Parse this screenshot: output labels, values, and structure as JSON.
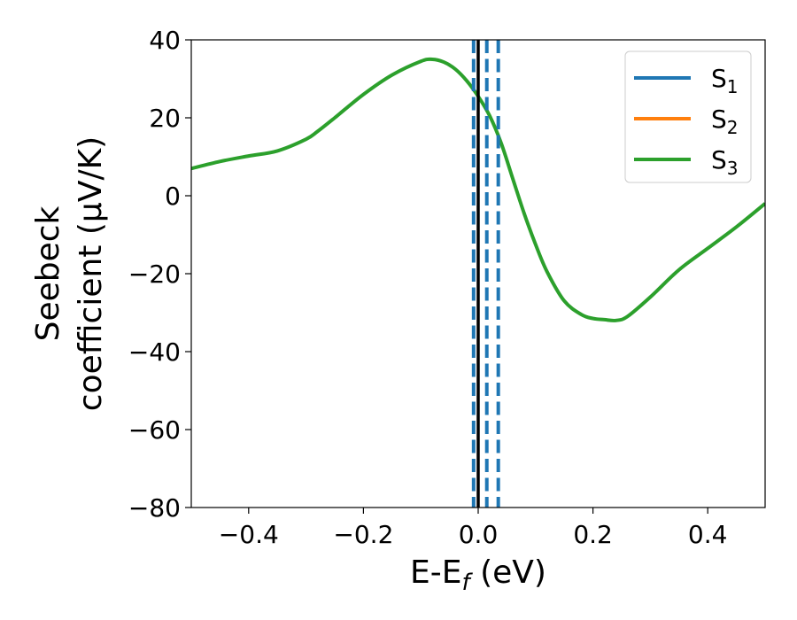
{
  "chart_data": {
    "type": "line",
    "xlabel_main": "E-E",
    "xlabel_sub": "f",
    "xlabel_unit": " (eV)",
    "ylabel_line1": "Seebeck",
    "ylabel_line2": "coefficient  (μV/K)",
    "xlim": [
      -0.5,
      0.5
    ],
    "ylim": [
      -80,
      40
    ],
    "x_ticks": [
      -0.4,
      -0.2,
      0.0,
      0.2,
      0.4
    ],
    "x_tick_labels": [
      "−0.4",
      "−0.2",
      "0.0",
      "0.2",
      "0.4"
    ],
    "y_ticks": [
      40,
      20,
      0,
      -20,
      -40,
      -60,
      -80
    ],
    "y_tick_labels": [
      "40",
      "20",
      "0",
      "−20",
      "−40",
      "−60",
      "−80"
    ],
    "grid": false,
    "legend_position": "top-right",
    "series": [
      {
        "name_main": "S",
        "name_sub": "1",
        "color": "#1f77b4"
      },
      {
        "name_main": "S",
        "name_sub": "2",
        "color": "#ff7f0e"
      },
      {
        "name_main": "S",
        "name_sub": "3",
        "color": "#2ca02c"
      }
    ],
    "curve": {
      "color": "#2ca02c",
      "x": [
        -0.5,
        -0.45,
        -0.4,
        -0.35,
        -0.3,
        -0.28,
        -0.25,
        -0.2,
        -0.15,
        -0.1,
        -0.08,
        -0.06,
        -0.04,
        -0.02,
        0.0,
        0.02,
        0.04,
        0.06,
        0.08,
        0.1,
        0.12,
        0.15,
        0.18,
        0.2,
        0.22,
        0.24,
        0.26,
        0.3,
        0.35,
        0.4,
        0.45,
        0.5
      ],
      "y": [
        7,
        8.8,
        10.2,
        11.5,
        14.5,
        16.5,
        20,
        26,
        31,
        34.5,
        35,
        34.3,
        32.5,
        29.5,
        25.5,
        20.5,
        13.5,
        4.5,
        -4.5,
        -12.5,
        -19.5,
        -27,
        -30.5,
        -31.5,
        -31.8,
        -32,
        -31,
        -26,
        -19,
        -13.5,
        -8,
        -2
      ]
    },
    "vertical_lines": [
      {
        "x": 0.0,
        "style": "solid",
        "color": "#000000"
      },
      {
        "x": -0.008,
        "style": "dashed",
        "color": "#1f77b4"
      },
      {
        "x": 0.015,
        "style": "dashed",
        "color": "#1f77b4"
      },
      {
        "x": 0.035,
        "style": "dashed",
        "color": "#1f77b4"
      }
    ]
  }
}
